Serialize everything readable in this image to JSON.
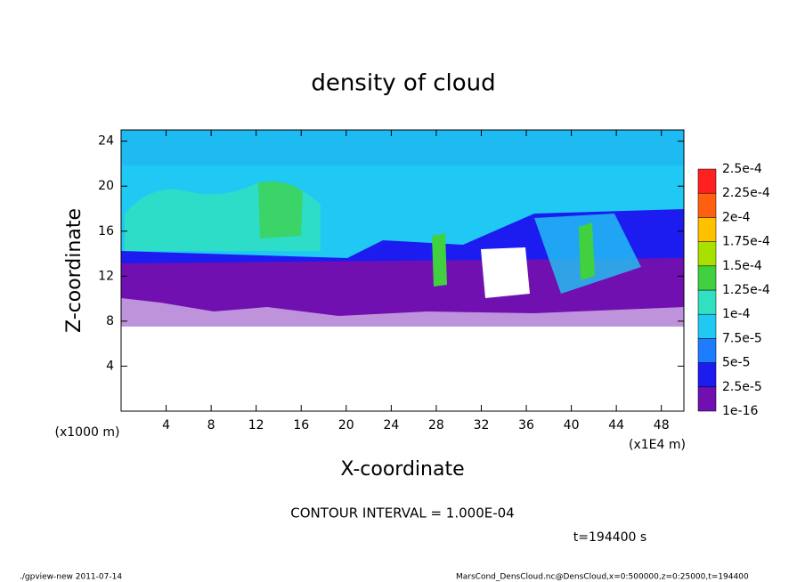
{
  "chart_data": {
    "type": "heatmap",
    "title": "density of cloud",
    "xlabel": "X-coordinate",
    "ylabel": "Z-coordinate",
    "x_unit_left": "(x1000 m)",
    "x_unit_right": "(x1E4 m)",
    "xlim": [
      0,
      50
    ],
    "ylim": [
      0,
      25
    ],
    "xticks": [
      4,
      8,
      12,
      16,
      20,
      24,
      28,
      32,
      36,
      40,
      44,
      48
    ],
    "yticks": [
      4,
      8,
      12,
      16,
      20,
      24
    ],
    "colorbar": {
      "levels": [
        {
          "value": 1e-16,
          "label": "1e-16"
        },
        {
          "value": 2.5e-05,
          "label": "2.5e-5"
        },
        {
          "value": 5e-05,
          "label": "5e-5"
        },
        {
          "value": 7.5e-05,
          "label": "7.5e-5"
        },
        {
          "value": 0.0001,
          "label": "1e-4"
        },
        {
          "value": 0.000125,
          "label": "1.25e-4"
        },
        {
          "value": 0.00015,
          "label": "1.5e-4"
        },
        {
          "value": 0.000175,
          "label": "1.75e-4"
        },
        {
          "value": 0.0002,
          "label": "2e-4"
        },
        {
          "value": 0.000225,
          "label": "2.25e-4"
        },
        {
          "value": 0.00025,
          "label": "2.5e-4"
        }
      ],
      "colors": [
        "#7010b0",
        "#1c1cf0",
        "#1e7cff",
        "#20c8f4",
        "#30e0c0",
        "#40d040",
        "#a8e000",
        "#ffc000",
        "#ff6010",
        "#ff2020",
        "#ff9090"
      ]
    },
    "contour_interval": "CONTOUR INTERVAL = 1.000E-04",
    "time_label": "t=194400 s",
    "footer_left": "./gpview-new  2011-07-14",
    "footer_right": "MarsCond_DensCloud.nc@DensCloud,x=0:500000,z=0:25000,t=194400"
  }
}
